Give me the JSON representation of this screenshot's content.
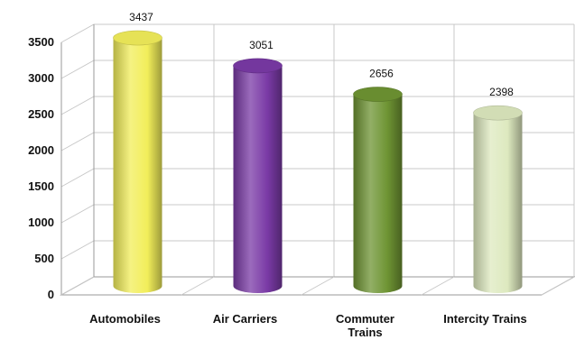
{
  "chart_data": {
    "type": "bar",
    "style": "3d-cylinder",
    "categories": [
      "Automobiles",
      "Air Carriers",
      "Commuter Trains",
      "Intercity Trains"
    ],
    "category_lines": [
      [
        "Automobiles"
      ],
      [
        "Air Carriers"
      ],
      [
        "Commuter",
        "Trains"
      ],
      [
        "Intercity Trains"
      ]
    ],
    "values": [
      3437,
      3051,
      2656,
      2398
    ],
    "data_labels": [
      "3437",
      "3051",
      "2656",
      "2398"
    ],
    "colors": [
      "#f2ee5a",
      "#7a3aa6",
      "#6e9433",
      "#dde9bf"
    ],
    "ylim": [
      0,
      3500
    ],
    "yticks": [
      "0",
      "500",
      "1000",
      "1500",
      "2000",
      "2500",
      "3000",
      "3500"
    ],
    "title": "",
    "xlabel": "",
    "ylabel": "",
    "grid": true,
    "legend": "none"
  }
}
